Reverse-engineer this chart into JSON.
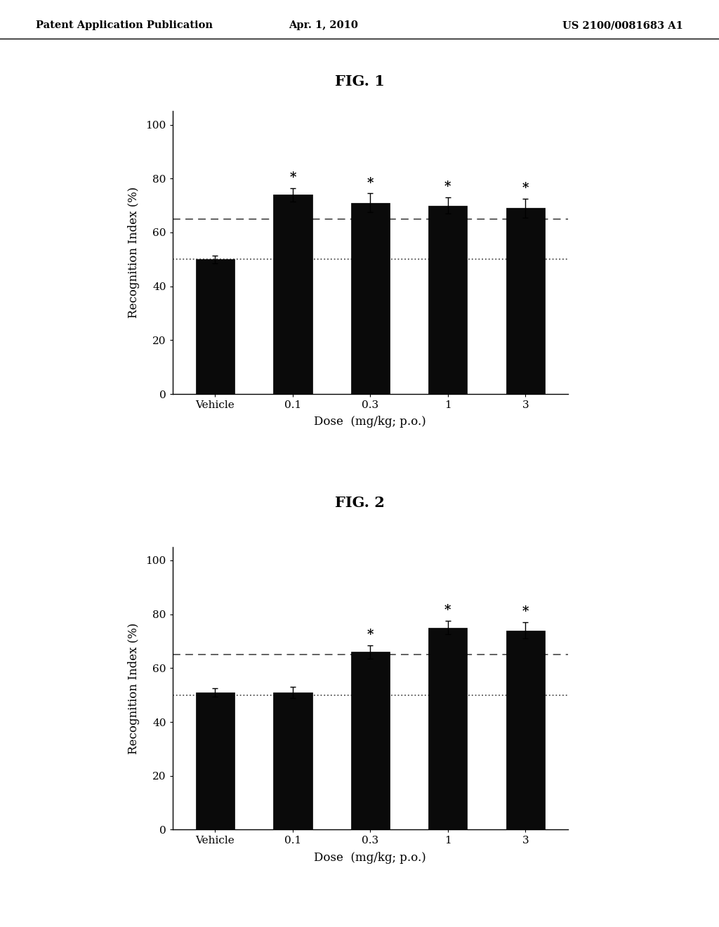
{
  "fig1": {
    "title": "FIG. 1",
    "categories": [
      "Vehicle",
      "0.1",
      "0.3",
      "1",
      "3"
    ],
    "bar_values": [
      50,
      74,
      71,
      70,
      69
    ],
    "bar_errors": [
      1.5,
      2.5,
      3.5,
      3.0,
      3.5
    ],
    "dashed_line": 65,
    "dotted_line": 50,
    "bar_color": "#0a0a0a",
    "error_color": "#111111",
    "significant": [
      false,
      true,
      true,
      true,
      true
    ],
    "ylabel": "Recognition Index (%)",
    "xlabel": "Dose  (mg/kg; p.o.)",
    "ylim": [
      0,
      105
    ],
    "yticks": [
      0,
      20,
      40,
      60,
      80,
      100
    ]
  },
  "fig2": {
    "title": "FIG. 2",
    "categories": [
      "Vehicle",
      "0.1",
      "0.3",
      "1",
      "3"
    ],
    "bar_values": [
      51,
      51,
      66,
      75,
      74
    ],
    "bar_errors": [
      1.5,
      2.0,
      2.5,
      2.5,
      3.0
    ],
    "dashed_line": 65,
    "dotted_line": 50,
    "bar_color": "#0a0a0a",
    "error_color": "#111111",
    "significant": [
      false,
      false,
      true,
      true,
      true
    ],
    "ylabel": "Recognition Index (%)",
    "xlabel": "Dose  (mg/kg; p.o.)",
    "ylim": [
      0,
      105
    ],
    "yticks": [
      0,
      20,
      40,
      60,
      80,
      100
    ]
  },
  "header_left": "Patent Application Publication",
  "header_center": "Apr. 1, 2010",
  "header_right": "US 2100/0081683 A1",
  "background_color": "#ffffff",
  "bar_width": 0.5
}
